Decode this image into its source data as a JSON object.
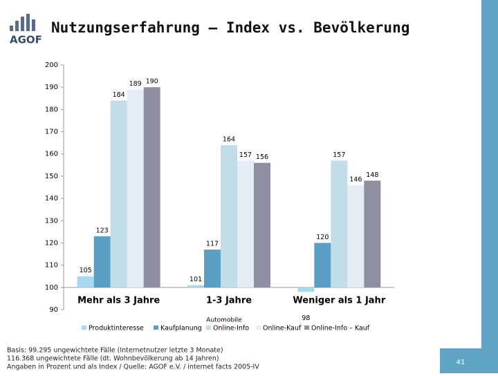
{
  "logo": "AGOF",
  "footnotes": [
    "Basis: 99.295 ungewichtete Fälle (Internetnutzer letzte 3 Monate)",
    "116.368 ungewichtete Fälle (dt. Wohnbevölkerung ab 14 Jahren)",
    "Angaben in Prozent und als Index / Quelle: AGOF e.V. / internet facts 2005-IV"
  ],
  "page_number": "41",
  "chart_data": {
    "type": "bar",
    "title": "Nutzungserfahrung – Index vs. Bevölkerung",
    "categories": [
      "Mehr als 3 Jahre",
      "1-3 Jahre",
      "Weniger als 1 Jahr"
    ],
    "legend_title": "Automobile",
    "series": [
      {
        "name": "Produktinteresse",
        "color": "#a9d9f2",
        "values": [
          105,
          101,
          98
        ]
      },
      {
        "name": "Kaufplanung",
        "color": "#5b9ec6",
        "values": [
          123,
          117,
          120
        ]
      },
      {
        "name": "Online-Info",
        "color": "#c3dcea",
        "values": [
          184,
          164,
          157
        ]
      },
      {
        "name": "Online-Kauf",
        "color": "#e4edf5",
        "values": [
          189,
          157,
          146
        ]
      },
      {
        "name": "Online-Info – Kauf",
        "color": "#8f8fa2",
        "values": [
          190,
          156,
          148
        ]
      }
    ],
    "baseline": 100,
    "ylim": [
      90,
      200
    ],
    "yticks": [
      90,
      100,
      110,
      120,
      130,
      140,
      150,
      160,
      170,
      180,
      190,
      200
    ],
    "grid": false,
    "legend": "bottom"
  }
}
